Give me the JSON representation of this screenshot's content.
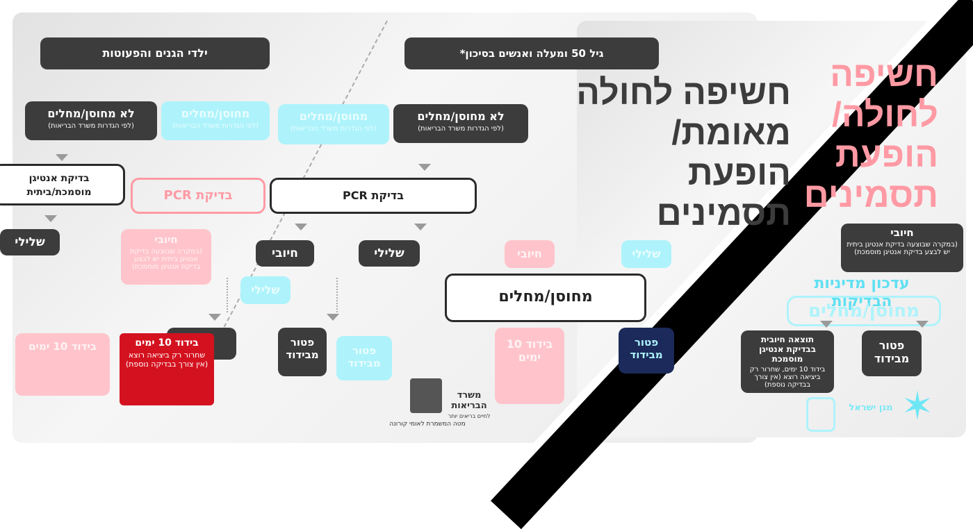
{
  "title": {
    "main_lines": [
      "חשיפה לחולה",
      "מאומת/",
      "הופעת",
      "תסמינים"
    ],
    "ghost_lines": [
      "חשיפה",
      "לחולה/",
      "הופעת",
      "תסמינים"
    ],
    "policy_update": "עדכון מדיניות הבדיקות"
  },
  "left_column": {
    "header": "ילדי הגנים והפעוטות",
    "not_vaccinated": "לא מחוסן/מחלים",
    "not_vaccinated_note": "(לפי הגדרות משרד הבריאות)",
    "vaccinated_ghost": "מחוסן/מחלים",
    "vaccinated_ghost_note": "(לפי הגדרות משרד הבריאות)",
    "test": "בדיקת אנטיגן מוסמכת/ביתית",
    "negative": "שלילי",
    "positive_ghost": "חיובי",
    "positive_ghost_note": "(במקרה שבוצעה בדיקת אנטיגן ביתית יש לבצע בדיקת אנטיגן מוסמכת)"
  },
  "middle_column": {
    "header": "גיל 50 ומעלה ואנשים בסיכון*",
    "not_vaccinated": "לא מחוסן/מחלים",
    "not_vaccinated_note": "(לפי הגדרות משרד הבריאות)",
    "vaccinated_ghost": "מחוסן/מחלים",
    "vaccinated_ghost_note": "(לפי הגדרות משרד הבריאות)",
    "test": "בדיקת PCR",
    "test_ghost": "בדיקת PCR",
    "negative": "שלילי",
    "positive": "חיובי",
    "negative_ghost": "שלילי",
    "positive_ghost": "חיובי",
    "isolation_title": "בידוד 10 ימים",
    "isolation_note": "שחרור רק ביציאה רוצא (אין צורך בבדיקה נוספת)",
    "isolation_ghost_title": "בידוד 10 ימים",
    "exempt": "פטור מבידוד",
    "exempt_ghost": "פטור מבידוד",
    "vaccinated_box": "מחוסן/מחלים"
  },
  "right_column": {
    "positive": "חיובי",
    "positive_note": "(במקרה שבוצעה בדיקת אנטיגן ביתית יש לבצע בדיקת אנטיגן מוסמכת)",
    "vaccinated_box": "מחוסן/מחלים",
    "result_title": "תוצאה חיובית בבדיקת אנטיגן מוסמכת",
    "result_note": "בידוד 10 ימים, שחרור רק ביציאה רוצא (אין צורך בבדיקה נוספת)",
    "exempt": "פטור מבידוד"
  },
  "logos": {
    "ministry": "משרד הבריאות",
    "ministry_sub": "לחיים בריאים יותר",
    "command": "מטה המשמרת לאומי קורונה",
    "magen": "מגן ישראל"
  },
  "colors": {
    "dark": "#3c3c3c",
    "cyan": "#aef3fb",
    "pink": "#ffc4cb",
    "red": "#d4121f"
  }
}
